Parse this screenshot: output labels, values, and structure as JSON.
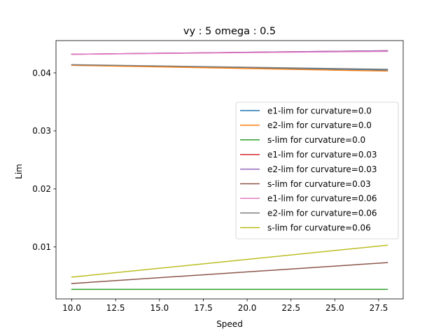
{
  "chart_data": {
    "type": "line",
    "title": "vy : 5 omega : 0.5",
    "xlabel": "Speed",
    "ylabel": "Lim",
    "xlim": [
      9.1,
      28.9
    ],
    "ylim": [
      0.00105,
      0.04555
    ],
    "xticks": [
      "10.0",
      "12.5",
      "15.0",
      "17.5",
      "20.0",
      "22.5",
      "25.0",
      "27.5"
    ],
    "xtick_values": [
      10.0,
      12.5,
      15.0,
      17.5,
      20.0,
      22.5,
      25.0,
      27.5
    ],
    "yticks": [
      "0.01",
      "0.02",
      "0.03",
      "0.04"
    ],
    "ytick_values": [
      0.01,
      0.02,
      0.03,
      0.04
    ],
    "grid": false,
    "legend_position": "center-right",
    "x": [
      10.0,
      28.0
    ],
    "series": [
      {
        "name": "e1-lim for curvature=0.0",
        "color": "#1f77b4",
        "values": [
          0.0413,
          0.0405
        ]
      },
      {
        "name": "e2-lim for curvature=0.0",
        "color": "#ff7f0e",
        "values": [
          0.0413,
          0.0403
        ]
      },
      {
        "name": "s-lim for curvature=0.0",
        "color": "#2ca02c",
        "values": [
          0.0027,
          0.0027
        ]
      },
      {
        "name": "e1-lim for curvature=0.03",
        "color": "#d62728",
        "values": [
          0.0432,
          0.0438
        ]
      },
      {
        "name": "e2-lim for curvature=0.03",
        "color": "#9467bd",
        "values": [
          0.0432,
          0.0438
        ]
      },
      {
        "name": "s-lim for curvature=0.03",
        "color": "#8c564b",
        "values": [
          0.0037,
          0.0073
        ]
      },
      {
        "name": "e1-lim for curvature=0.06",
        "color": "#e377c2",
        "values": [
          0.0432,
          0.0437
        ]
      },
      {
        "name": "e2-lim for curvature=0.06",
        "color": "#7f7f7f",
        "values": [
          0.0414,
          0.0406
        ]
      },
      {
        "name": "s-lim for curvature=0.06",
        "color": "#bcbd22",
        "values": [
          0.0048,
          0.0103
        ]
      }
    ]
  }
}
